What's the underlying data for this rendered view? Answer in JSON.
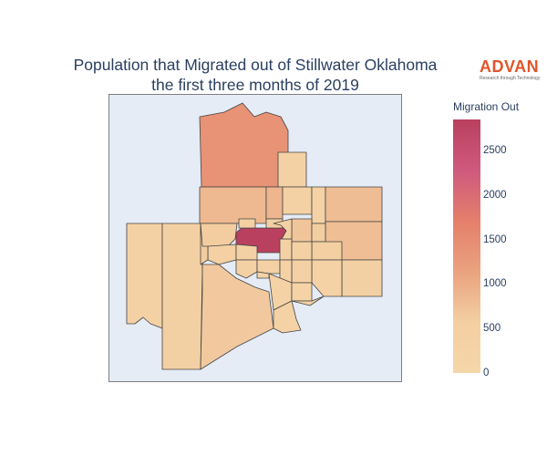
{
  "title_line1": "Population that Migrated out of Stillwater Oklahoma",
  "title_line2": "the first three months of 2019",
  "logo": {
    "word": "ADVAN",
    "tagline": "Research through Technology"
  },
  "colorbar": {
    "title": "Migration Out",
    "min": 0,
    "max": 2850,
    "ticks": [
      "2500",
      "2000",
      "1500",
      "1000",
      "500",
      "0"
    ],
    "colors": [
      "#f6d6a9",
      "#f3cfa2",
      "#eaa27f",
      "#e57f6b",
      "#cf597e",
      "#b9405e"
    ]
  },
  "map": {
    "background": "#e5ecf6",
    "region_values": [
      1400,
      860,
      420,
      900,
      370,
      330,
      800,
      430,
      520,
      600,
      780,
      700,
      580,
      560,
      520,
      2850,
      450,
      500,
      450,
      430,
      410,
      400,
      360,
      440,
      640,
      600,
      380,
      390,
      330,
      360,
      280,
      300,
      320,
      250,
      420
    ]
  }
}
